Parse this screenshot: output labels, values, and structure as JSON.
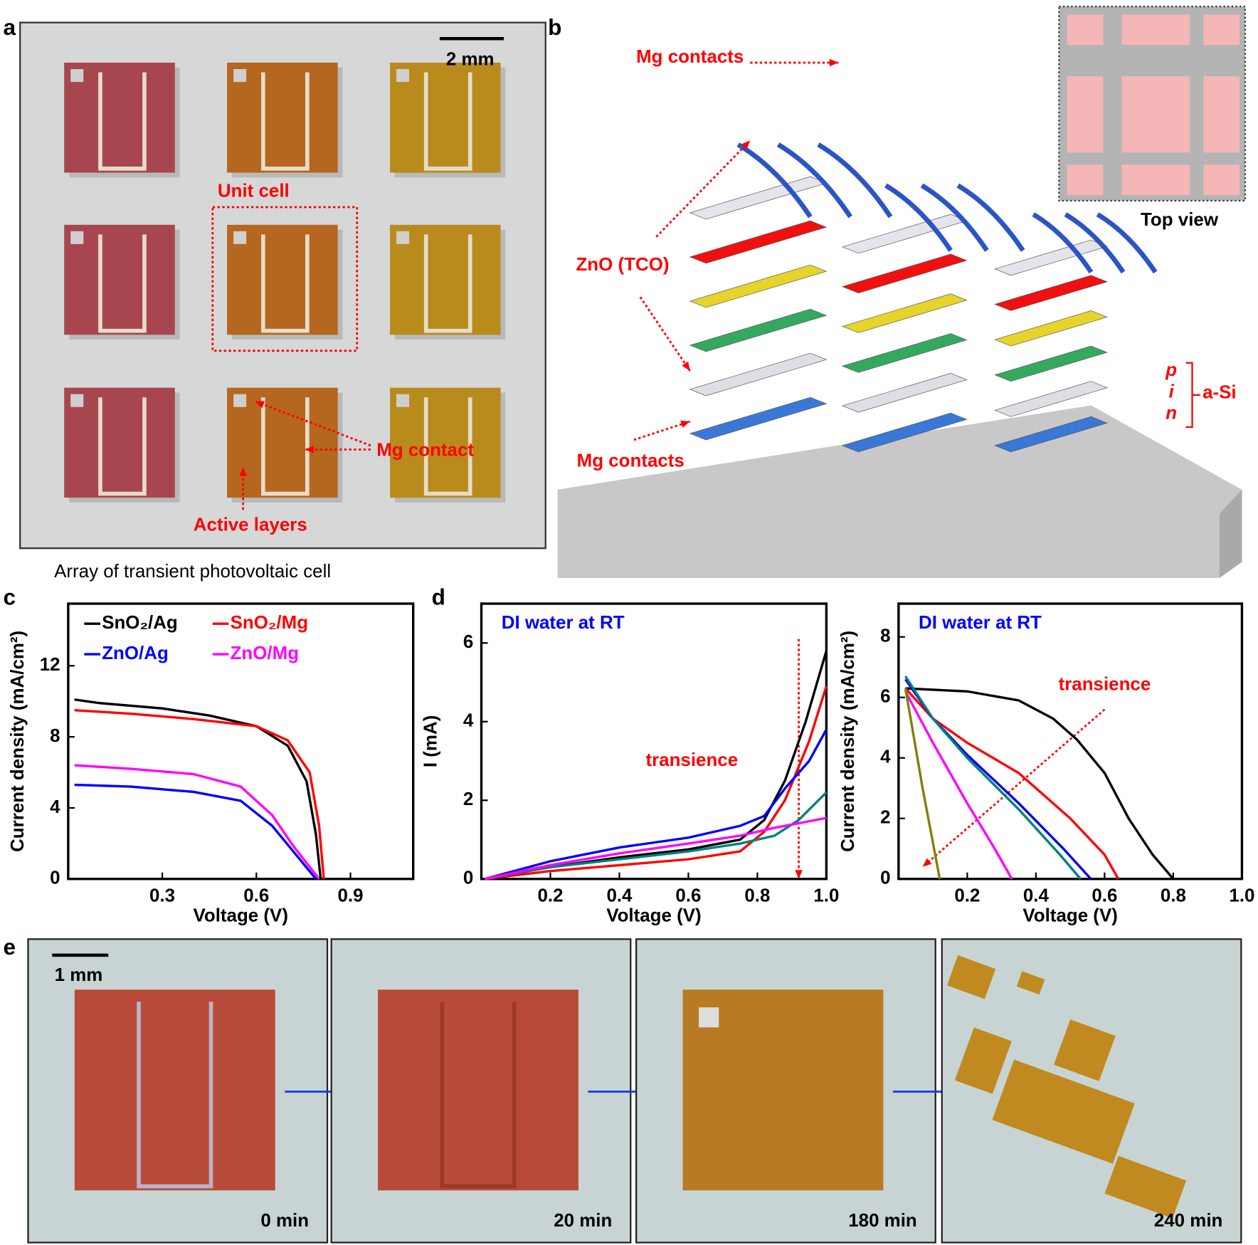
{
  "panel_labels": [
    "a",
    "b",
    "c",
    "d",
    "e"
  ],
  "panel_a": {
    "scale_bar": "2 mm",
    "unit_cell": "Unit cell",
    "mg_contact": "Mg contact",
    "active_layers": "Active layers",
    "caption": "Array of transient photovoltaic cell"
  },
  "panel_b": {
    "mg_contacts_top": "Mg contacts",
    "zno": "ZnO (TCO)",
    "mg_contacts_bottom": "Mg contacts",
    "top_view": "Top view",
    "p": "p",
    "i": "i",
    "n": "n",
    "a_si": "a-Si"
  },
  "panel_e": {
    "scale_bar": "1 mm",
    "times": [
      "0 min",
      "20 min",
      "180 min",
      "240 min"
    ]
  },
  "chart_data": [
    {
      "type": "line",
      "xlabel": "Voltage (V)",
      "ylabel": "Current density (mA/cm²)",
      "legend": "upper left",
      "xlim": [
        0,
        1.1
      ],
      "ylim": [
        0,
        15.5
      ],
      "xticks": [
        0.3,
        0.6,
        0.9
      ],
      "yticks": [
        0,
        4,
        8,
        12
      ],
      "series": [
        {
          "name": "SnO₂/Ag",
          "color": "#000000",
          "x": [
            0.02,
            0.1,
            0.3,
            0.45,
            0.6,
            0.7,
            0.76,
            0.79,
            0.805
          ],
          "values": [
            10.1,
            9.9,
            9.6,
            9.2,
            8.6,
            7.5,
            5.5,
            2.5,
            0
          ]
        },
        {
          "name": "SnO₂/Mg",
          "color": "#ff0000",
          "x": [
            0.02,
            0.2,
            0.4,
            0.6,
            0.7,
            0.77,
            0.8,
            0.815
          ],
          "values": [
            9.5,
            9.3,
            9.0,
            8.6,
            7.8,
            6.0,
            3.0,
            0
          ]
        },
        {
          "name": "ZnO/Ag",
          "color": "#0000ff",
          "x": [
            0.02,
            0.2,
            0.4,
            0.55,
            0.65,
            0.72,
            0.79
          ],
          "values": [
            5.3,
            5.2,
            4.9,
            4.4,
            3.0,
            1.5,
            0
          ]
        },
        {
          "name": "ZnO/Mg",
          "color": "#ff00ff",
          "x": [
            0.02,
            0.2,
            0.4,
            0.55,
            0.65,
            0.72,
            0.8
          ],
          "values": [
            6.4,
            6.2,
            5.9,
            5.2,
            3.6,
            1.8,
            0
          ]
        }
      ]
    },
    {
      "type": "line",
      "title": "DI water at RT",
      "annotation": "transience",
      "xlabel": "Voltage (V)",
      "ylabel": "I (mA)",
      "xlim": [
        0,
        1.0
      ],
      "ylim": [
        0,
        7
      ],
      "xticks": [
        0.2,
        0.4,
        0.6,
        0.8,
        {
          "value": 1,
          "label": "1.0"
        }
      ],
      "yticks": [
        0,
        2,
        4,
        6
      ],
      "series": [
        {
          "color": "#000000",
          "x": [
            0.01,
            0.2,
            0.4,
            0.6,
            0.75,
            0.82,
            0.88,
            0.94,
            1.0
          ],
          "values": [
            0,
            0.3,
            0.55,
            0.75,
            1.0,
            1.5,
            2.5,
            4.0,
            5.8
          ]
        },
        {
          "color": "#ff0000",
          "x": [
            0.01,
            0.2,
            0.4,
            0.6,
            0.75,
            0.82,
            0.88,
            0.95,
            1.0
          ],
          "values": [
            0,
            0.2,
            0.35,
            0.5,
            0.7,
            1.2,
            2.0,
            3.5,
            4.9
          ]
        },
        {
          "color": "#0000ff",
          "x": [
            0.01,
            0.2,
            0.4,
            0.6,
            0.75,
            0.82,
            0.88,
            0.95,
            1.0
          ],
          "values": [
            0,
            0.45,
            0.8,
            1.05,
            1.35,
            1.6,
            2.3,
            3.0,
            3.8
          ]
        },
        {
          "color": "#008080",
          "x": [
            0.01,
            0.2,
            0.4,
            0.6,
            0.75,
            0.85,
            0.92,
            1.0
          ],
          "values": [
            0,
            0.3,
            0.5,
            0.7,
            0.9,
            1.1,
            1.5,
            2.2
          ]
        },
        {
          "color": "#ff00ff",
          "x": [
            0.01,
            0.2,
            0.4,
            0.6,
            0.75,
            0.85,
            1.0
          ],
          "values": [
            0,
            0.35,
            0.65,
            0.9,
            1.1,
            1.3,
            1.55
          ]
        }
      ]
    },
    {
      "type": "line",
      "title": "DI water at RT",
      "annotation": "transience",
      "xlabel": "Voltage (V)",
      "ylabel": "Current density (mA/cm²)",
      "xlim": [
        0,
        1.0
      ],
      "ylim": [
        0,
        9.1
      ],
      "xticks": [
        0.2,
        0.4,
        0.6,
        0.8,
        {
          "value": 1,
          "label": "1.0"
        }
      ],
      "yticks": [
        0,
        2,
        4,
        6,
        8
      ],
      "series": [
        {
          "color": "#000000",
          "x": [
            0.02,
            0.2,
            0.35,
            0.45,
            0.52,
            0.6,
            0.67,
            0.74,
            0.8
          ],
          "values": [
            6.3,
            6.2,
            5.9,
            5.3,
            4.6,
            3.5,
            2.0,
            0.8,
            0
          ]
        },
        {
          "color": "#ff0000",
          "x": [
            0.02,
            0.1,
            0.2,
            0.35,
            0.5,
            0.6,
            0.64
          ],
          "values": [
            6.3,
            5.3,
            4.5,
            3.5,
            2.0,
            0.8,
            0
          ]
        },
        {
          "color": "#0000ff",
          "x": [
            0.02,
            0.1,
            0.2,
            0.35,
            0.48,
            0.56
          ],
          "values": [
            6.6,
            5.3,
            4.1,
            2.5,
            1.0,
            0
          ]
        },
        {
          "color": "#008080",
          "x": [
            0.02,
            0.1,
            0.2,
            0.35,
            0.47,
            0.53
          ],
          "values": [
            6.7,
            5.3,
            4.0,
            2.3,
            0.8,
            0
          ]
        },
        {
          "color": "#ff00ff",
          "x": [
            0.02,
            0.1,
            0.2,
            0.28,
            0.33
          ],
          "values": [
            6.2,
            4.5,
            2.5,
            1.0,
            0
          ]
        },
        {
          "color": "#808000",
          "x": [
            0.02,
            0.07,
            0.12
          ],
          "values": [
            6.3,
            3.0,
            0
          ]
        }
      ]
    }
  ]
}
